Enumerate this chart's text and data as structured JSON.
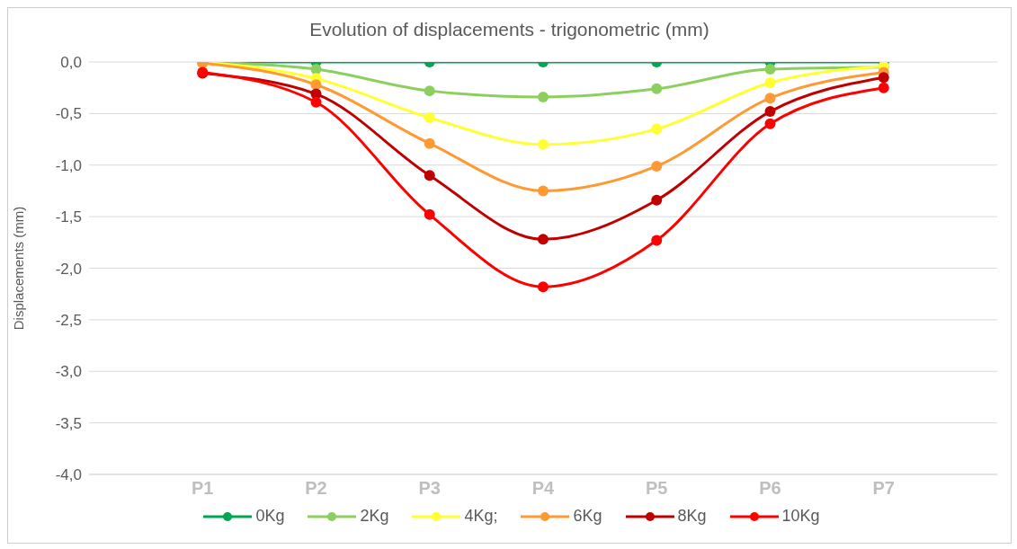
{
  "chart_data": {
    "type": "line",
    "title": "Evolution of displacements - trigonometric (mm)",
    "ylabel": "Displacements (mm)",
    "categories": [
      "P1",
      "P2",
      "P3",
      "P4",
      "P5",
      "P6",
      "P7"
    ],
    "series": [
      {
        "name": "0Kg",
        "color": "#00a651",
        "values": [
          0,
          0,
          0,
          0,
          0,
          0,
          0
        ]
      },
      {
        "name": "2Kg",
        "color": "#8ccf5f",
        "values": [
          0,
          -0.07,
          -0.28,
          -0.34,
          -0.26,
          -0.07,
          -0.05
        ]
      },
      {
        "name": "4Kg;",
        "color": "#ffff33",
        "values": [
          0,
          -0.16,
          -0.54,
          -0.8,
          -0.65,
          -0.2,
          -0.04
        ]
      },
      {
        "name": "6Kg",
        "color": "#ff9933",
        "values": [
          -0.01,
          -0.22,
          -0.79,
          -1.25,
          -1.01,
          -0.35,
          -0.1
        ]
      },
      {
        "name": "8Kg",
        "color": "#c00000",
        "values": [
          -0.11,
          -0.31,
          -1.1,
          -1.72,
          -1.34,
          -0.48,
          -0.15
        ]
      },
      {
        "name": "10Kg",
        "color": "#ff0000",
        "values": [
          -0.1,
          -0.39,
          -1.48,
          -2.18,
          -1.73,
          -0.6,
          -0.25
        ]
      }
    ],
    "ylim": [
      -4,
      0
    ],
    "yticks": [
      {
        "value": 0,
        "label": "0,0"
      },
      {
        "value": -0.5,
        "label": "-0,5"
      },
      {
        "value": -1,
        "label": "-1,0"
      },
      {
        "value": -1.5,
        "label": "-1,5"
      },
      {
        "value": -2,
        "label": "-2,0"
      },
      {
        "value": -2.5,
        "label": "-2,5"
      },
      {
        "value": -3,
        "label": "-3,0"
      },
      {
        "value": -3.5,
        "label": "-3,5"
      },
      {
        "value": -4,
        "label": "-4,0"
      }
    ],
    "grid": "y",
    "legend": "bottom",
    "marker": "circle",
    "line_style": "solid"
  }
}
